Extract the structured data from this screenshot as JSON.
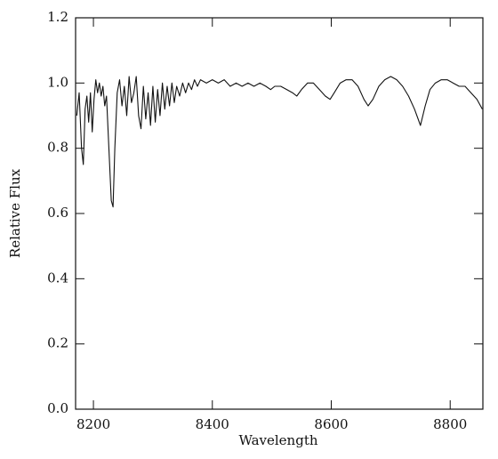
{
  "chart_data": {
    "type": "line",
    "xlabel": "Wavelength",
    "ylabel": "Relative Flux",
    "xlim": [
      8170,
      8855
    ],
    "xticks": [
      8200,
      8400,
      8600,
      8800
    ],
    "ylim": [
      0,
      1.2
    ],
    "yticks": [
      {
        "value": 0,
        "label": "0.0"
      },
      0.2,
      0.4,
      0.6,
      0.8,
      {
        "value": 1,
        "label": "1.0"
      },
      1.2
    ],
    "series": [
      {
        "color": "#111111",
        "x": [
          8172,
          8176,
          8180,
          8183,
          8186,
          8189,
          8192,
          8195,
          8198,
          8201,
          8204,
          8207,
          8210,
          8213,
          8216,
          8219,
          8222,
          8226,
          8230,
          8233,
          8236,
          8240,
          8244,
          8248,
          8252,
          8256,
          8260,
          8264,
          8268,
          8272,
          8276,
          8280,
          8284,
          8288,
          8292,
          8296,
          8300,
          8304,
          8308,
          8312,
          8316,
          8320,
          8324,
          8328,
          8332,
          8336,
          8340,
          8345,
          8350,
          8355,
          8360,
          8365,
          8370,
          8375,
          8380,
          8390,
          8400,
          8410,
          8420,
          8430,
          8440,
          8450,
          8460,
          8470,
          8480,
          8490,
          8498,
          8505,
          8515,
          8525,
          8535,
          8542,
          8550,
          8560,
          8570,
          8580,
          8590,
          8598,
          8605,
          8615,
          8625,
          8635,
          8645,
          8655,
          8662,
          8670,
          8680,
          8690,
          8700,
          8710,
          8720,
          8730,
          8740,
          8750,
          8758,
          8766,
          8775,
          8785,
          8795,
          8805,
          8815,
          8825,
          8835,
          8845,
          8854
        ],
        "values": [
          0.9,
          0.97,
          0.8,
          0.75,
          0.92,
          0.96,
          0.88,
          0.97,
          0.85,
          0.95,
          1.01,
          0.97,
          1.0,
          0.96,
          0.99,
          0.93,
          0.96,
          0.8,
          0.64,
          0.62,
          0.8,
          0.97,
          1.01,
          0.93,
          0.99,
          0.9,
          1.02,
          0.94,
          0.97,
          1.02,
          0.9,
          0.86,
          0.99,
          0.89,
          0.97,
          0.87,
          0.99,
          0.88,
          0.98,
          0.9,
          1.0,
          0.92,
          0.99,
          0.93,
          1.0,
          0.94,
          0.99,
          0.96,
          1.0,
          0.97,
          1.0,
          0.98,
          1.01,
          0.99,
          1.01,
          1.0,
          1.01,
          1.0,
          1.01,
          0.99,
          1.0,
          0.99,
          1.0,
          0.99,
          1.0,
          0.99,
          0.98,
          0.99,
          0.99,
          0.98,
          0.97,
          0.96,
          0.98,
          1.0,
          1.0,
          0.98,
          0.96,
          0.95,
          0.97,
          1.0,
          1.01,
          1.01,
          0.99,
          0.95,
          0.93,
          0.95,
          0.99,
          1.01,
          1.02,
          1.01,
          0.99,
          0.96,
          0.92,
          0.87,
          0.93,
          0.98,
          1.0,
          1.01,
          1.01,
          1.0,
          0.99,
          0.99,
          0.97,
          0.95,
          0.92
        ]
      }
    ]
  }
}
